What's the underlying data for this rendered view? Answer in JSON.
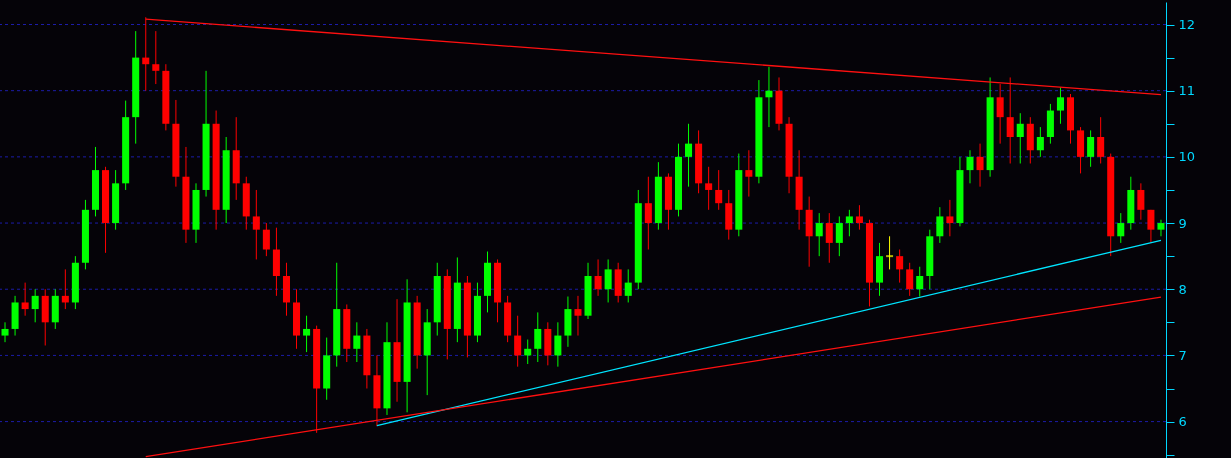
{
  "chart_data": {
    "type": "candlestick",
    "categories": [
      null,
      null,
      null,
      null,
      null,
      null,
      null,
      null,
      null,
      null,
      null,
      null,
      null,
      null,
      null,
      null,
      null,
      null,
      null,
      null,
      null,
      null,
      null,
      null,
      null,
      null,
      null,
      null,
      null,
      null,
      null,
      null,
      null,
      null,
      null,
      null,
      null,
      null,
      null,
      null,
      null,
      null,
      null,
      null,
      null,
      null,
      null,
      null,
      null,
      null,
      null,
      null,
      null,
      null,
      null,
      null,
      null,
      null,
      null,
      null,
      null,
      null,
      null,
      null,
      null,
      null,
      null,
      null,
      null,
      null,
      null,
      null,
      null,
      null,
      null,
      null,
      null,
      null,
      null,
      null,
      null,
      null,
      null,
      null,
      null,
      null,
      null,
      null,
      null,
      null,
      null,
      null,
      null,
      null,
      null,
      null,
      null,
      null,
      null,
      null,
      null,
      null,
      null,
      null,
      null,
      null,
      null,
      null,
      null,
      null,
      null,
      null,
      null,
      null,
      null,
      null
    ],
    "ohlc": [
      [
        7.3,
        7.5,
        7.2,
        7.4
      ],
      [
        7.4,
        7.9,
        7.3,
        7.8
      ],
      [
        7.8,
        8.1,
        7.6,
        7.7
      ],
      [
        7.7,
        8.0,
        7.5,
        7.9
      ],
      [
        7.9,
        8.0,
        7.15,
        7.5
      ],
      [
        7.5,
        8.0,
        7.4,
        7.9
      ],
      [
        7.9,
        8.3,
        7.7,
        7.8
      ],
      [
        7.8,
        8.5,
        7.7,
        8.4
      ],
      [
        8.4,
        9.35,
        8.3,
        9.2
      ],
      [
        9.2,
        10.15,
        9.1,
        9.8
      ],
      [
        9.8,
        9.85,
        8.55,
        9.0
      ],
      [
        9.0,
        9.8,
        8.9,
        9.6
      ],
      [
        9.6,
        10.85,
        9.5,
        10.6
      ],
      [
        10.6,
        11.9,
        10.2,
        11.5
      ],
      [
        11.5,
        12.11,
        11.0,
        11.4
      ],
      [
        11.4,
        11.9,
        11.1,
        11.3
      ],
      [
        11.3,
        11.4,
        10.4,
        10.5
      ],
      [
        10.5,
        10.86,
        9.55,
        9.7
      ],
      [
        9.7,
        10.15,
        8.7,
        8.9
      ],
      [
        8.9,
        9.6,
        8.7,
        9.5
      ],
      [
        9.5,
        11.3,
        9.4,
        10.5
      ],
      [
        10.5,
        10.7,
        8.9,
        9.2
      ],
      [
        9.2,
        10.3,
        9.0,
        10.1
      ],
      [
        10.1,
        10.6,
        9.35,
        9.6
      ],
      [
        9.6,
        9.7,
        8.9,
        9.1
      ],
      [
        9.1,
        9.5,
        8.45,
        8.9
      ],
      [
        8.9,
        9.0,
        8.5,
        8.6
      ],
      [
        8.6,
        8.93,
        7.9,
        8.2
      ],
      [
        8.2,
        8.4,
        7.6,
        7.8
      ],
      [
        7.8,
        8.0,
        7.1,
        7.3
      ],
      [
        7.3,
        7.6,
        7.05,
        7.4
      ],
      [
        7.4,
        7.45,
        5.83,
        6.5
      ],
      [
        6.5,
        7.27,
        6.33,
        7.0
      ],
      [
        7.0,
        8.4,
        6.83,
        7.7
      ],
      [
        7.7,
        7.77,
        6.9,
        7.1
      ],
      [
        7.1,
        7.5,
        6.9,
        7.3
      ],
      [
        7.3,
        7.4,
        6.5,
        6.7
      ],
      [
        6.7,
        7.0,
        5.93,
        6.2
      ],
      [
        6.2,
        7.5,
        6.1,
        7.2
      ],
      [
        7.2,
        7.85,
        6.3,
        6.6
      ],
      [
        6.6,
        8.15,
        6.14,
        7.8
      ],
      [
        7.8,
        7.9,
        6.8,
        7.0
      ],
      [
        7.0,
        7.7,
        6.4,
        7.5
      ],
      [
        7.5,
        8.4,
        7.3,
        8.2
      ],
      [
        8.2,
        8.3,
        6.94,
        7.4
      ],
      [
        7.4,
        8.48,
        7.2,
        8.1
      ],
      [
        8.1,
        8.2,
        6.97,
        7.3
      ],
      [
        7.3,
        8.1,
        7.2,
        7.9
      ],
      [
        7.9,
        8.57,
        7.65,
        8.4
      ],
      [
        8.4,
        8.45,
        7.5,
        7.8
      ],
      [
        7.8,
        7.9,
        7.2,
        7.3
      ],
      [
        7.3,
        7.6,
        6.83,
        7.0
      ],
      [
        7.0,
        7.24,
        6.87,
        7.1
      ],
      [
        7.1,
        7.65,
        6.9,
        7.4
      ],
      [
        7.4,
        7.5,
        6.85,
        7.0
      ],
      [
        7.0,
        7.5,
        6.83,
        7.3
      ],
      [
        7.3,
        7.89,
        7.13,
        7.7
      ],
      [
        7.7,
        7.9,
        7.3,
        7.6
      ],
      [
        7.6,
        8.4,
        7.55,
        8.2
      ],
      [
        8.2,
        8.45,
        7.9,
        8.0
      ],
      [
        8.0,
        8.45,
        7.8,
        8.3
      ],
      [
        8.3,
        8.4,
        7.8,
        7.9
      ],
      [
        7.9,
        8.3,
        7.8,
        8.1
      ],
      [
        8.1,
        9.5,
        8.0,
        9.3
      ],
      [
        9.3,
        9.7,
        8.6,
        9.0
      ],
      [
        9.0,
        9.92,
        8.9,
        9.7
      ],
      [
        9.7,
        9.75,
        8.9,
        9.2
      ],
      [
        9.2,
        10.2,
        9.1,
        10.0
      ],
      [
        10.0,
        10.5,
        9.55,
        10.2
      ],
      [
        10.2,
        10.4,
        9.45,
        9.6
      ],
      [
        9.6,
        9.85,
        9.2,
        9.5
      ],
      [
        9.5,
        9.8,
        9.2,
        9.3
      ],
      [
        9.3,
        9.5,
        8.75,
        8.9
      ],
      [
        8.9,
        10.05,
        8.8,
        9.8
      ],
      [
        9.8,
        10.1,
        9.4,
        9.7
      ],
      [
        9.7,
        11.16,
        9.6,
        10.9
      ],
      [
        10.9,
        11.36,
        10.45,
        11.0
      ],
      [
        11.0,
        11.2,
        10.4,
        10.5
      ],
      [
        10.5,
        10.6,
        9.45,
        9.7
      ],
      [
        9.7,
        10.1,
        8.9,
        9.2
      ],
      [
        9.2,
        9.4,
        8.34,
        8.8
      ],
      [
        8.8,
        9.15,
        8.5,
        9.0
      ],
      [
        9.0,
        9.15,
        8.4,
        8.7
      ],
      [
        8.7,
        9.1,
        8.5,
        9.0
      ],
      [
        9.0,
        9.2,
        8.8,
        9.1
      ],
      [
        9.1,
        9.27,
        8.9,
        9.0
      ],
      [
        9.0,
        9.05,
        7.74,
        8.1
      ],
      [
        8.1,
        8.7,
        7.9,
        8.5
      ],
      [
        8.5,
        8.8,
        8.3,
        8.5
      ],
      [
        8.5,
        8.6,
        8.1,
        8.3
      ],
      [
        8.3,
        8.4,
        7.9,
        8.0
      ],
      [
        8.0,
        8.34,
        7.89,
        8.2
      ],
      [
        8.2,
        8.9,
        8.0,
        8.8
      ],
      [
        8.8,
        9.24,
        8.7,
        9.1
      ],
      [
        9.1,
        9.35,
        8.8,
        9.0
      ],
      [
        9.0,
        10.0,
        8.95,
        9.8
      ],
      [
        9.8,
        10.1,
        9.6,
        10.0
      ],
      [
        10.0,
        10.2,
        9.55,
        9.8
      ],
      [
        9.8,
        11.2,
        9.7,
        10.9
      ],
      [
        10.9,
        11.1,
        10.2,
        10.6
      ],
      [
        10.6,
        11.2,
        9.9,
        10.3
      ],
      [
        10.3,
        10.66,
        9.9,
        10.5
      ],
      [
        10.5,
        10.6,
        9.9,
        10.1
      ],
      [
        10.1,
        10.45,
        10.0,
        10.3
      ],
      [
        10.3,
        10.8,
        10.2,
        10.7
      ],
      [
        10.7,
        11.05,
        10.5,
        10.9
      ],
      [
        10.9,
        10.95,
        10.2,
        10.4
      ],
      [
        10.4,
        10.45,
        9.75,
        10.0
      ],
      [
        10.0,
        10.4,
        9.85,
        10.3
      ],
      [
        10.3,
        10.6,
        9.9,
        10.0
      ],
      [
        10.0,
        10.05,
        8.5,
        8.8
      ],
      [
        8.8,
        9.15,
        8.7,
        9.0
      ],
      [
        9.0,
        9.7,
        8.9,
        9.5
      ],
      [
        9.5,
        9.6,
        9.05,
        9.2
      ],
      [
        9.2,
        9.2,
        8.7,
        8.9
      ],
      [
        8.9,
        9.05,
        8.8,
        9.0
      ]
    ],
    "colors": [
      "#00ff00",
      "#00ff00",
      "#ff0000",
      "#00ff00",
      "#ff0000",
      "#00ff00",
      "#ff0000",
      "#00ff00",
      "#00ff00",
      "#00ff00",
      "#ff0000",
      "#00ff00",
      "#00ff00",
      "#00ff00",
      "#ff0000",
      "#ff0000",
      "#ff0000",
      "#ff0000",
      "#ff0000",
      "#00ff00",
      "#00ff00",
      "#ff0000",
      "#00ff00",
      "#ff0000",
      "#ff0000",
      "#ff0000",
      "#ff0000",
      "#ff0000",
      "#ff0000",
      "#ff0000",
      "#00ff00",
      "#ff0000",
      "#00ff00",
      "#00ff00",
      "#ff0000",
      "#00ff00",
      "#ff0000",
      "#ff0000",
      "#00ff00",
      "#ff0000",
      "#00ff00",
      "#ff0000",
      "#00ff00",
      "#00ff00",
      "#ff0000",
      "#00ff00",
      "#ff0000",
      "#00ff00",
      "#00ff00",
      "#ff0000",
      "#ff0000",
      "#ff0000",
      "#00ff00",
      "#00ff00",
      "#ff0000",
      "#00ff00",
      "#00ff00",
      "#ff0000",
      "#00ff00",
      "#ff0000",
      "#00ff00",
      "#ff0000",
      "#00ff00",
      "#00ff00",
      "#ff0000",
      "#00ff00",
      "#ff0000",
      "#00ff00",
      "#00ff00",
      "#ff0000",
      "#ff0000",
      "#ff0000",
      "#ff0000",
      "#00ff00",
      "#ff0000",
      "#00ff00",
      "#00ff00",
      "#ff0000",
      "#ff0000",
      "#ff0000",
      "#ff0000",
      "#00ff00",
      "#ff0000",
      "#00ff00",
      "#00ff00",
      "#ff0000",
      "#ff0000",
      "#00ff00",
      "#ffff00",
      "#ff0000",
      "#ff0000",
      "#00ff00",
      "#00ff00",
      "#00ff00",
      "#ff0000",
      "#00ff00",
      "#00ff00",
      "#ff0000",
      "#00ff00",
      "#ff0000",
      "#ff0000",
      "#00ff00",
      "#ff0000",
      "#00ff00",
      "#00ff00",
      "#00ff00",
      "#ff0000",
      "#ff0000",
      "#00ff00",
      "#ff0000",
      "#ff0000",
      "#00ff00",
      "#00ff00",
      "#ff0000",
      "#ff0000",
      "#00ff00"
    ],
    "series": [
      {
        "type": "line",
        "color": "#ff1010",
        "values": [
          null,
          null,
          null,
          null,
          null,
          null,
          null,
          null,
          null,
          null,
          null,
          null,
          null,
          null,
          12.08,
          null,
          null,
          null,
          null,
          null,
          null,
          null,
          null,
          null,
          null,
          null,
          null,
          null,
          null,
          null,
          null,
          null,
          null,
          null,
          null,
          null,
          null,
          null,
          null,
          null,
          null,
          null,
          null,
          null,
          null,
          null,
          null,
          null,
          null,
          null,
          null,
          null,
          null,
          null,
          null,
          null,
          null,
          null,
          null,
          null,
          null,
          null,
          null,
          null,
          null,
          null,
          null,
          null,
          null,
          null,
          null,
          null,
          null,
          null,
          null,
          null,
          null,
          null,
          null,
          null,
          null,
          null,
          null,
          null,
          null,
          null,
          null,
          null,
          null,
          null,
          null,
          null,
          null,
          null,
          null,
          null,
          null,
          null,
          null,
          null,
          null,
          null,
          null,
          null,
          null,
          null,
          null,
          null,
          null,
          null,
          null,
          null,
          null,
          null,
          null,
          10.94
        ]
      },
      {
        "type": "line",
        "color": "#00e5ff",
        "values": [
          null,
          null,
          null,
          null,
          null,
          null,
          null,
          null,
          null,
          null,
          null,
          null,
          null,
          null,
          null,
          null,
          null,
          null,
          null,
          null,
          null,
          null,
          null,
          null,
          null,
          null,
          null,
          null,
          null,
          null,
          null,
          null,
          null,
          null,
          null,
          null,
          null,
          5.94,
          null,
          null,
          null,
          null,
          null,
          null,
          null,
          null,
          null,
          null,
          null,
          null,
          null,
          null,
          null,
          null,
          null,
          null,
          null,
          null,
          null,
          null,
          null,
          null,
          null,
          null,
          null,
          null,
          null,
          null,
          null,
          null,
          null,
          null,
          null,
          null,
          null,
          null,
          null,
          null,
          null,
          null,
          null,
          null,
          null,
          null,
          null,
          null,
          null,
          null,
          null,
          null,
          null,
          null,
          null,
          null,
          null,
          null,
          null,
          null,
          null,
          null,
          null,
          null,
          null,
          null,
          null,
          null,
          null,
          null,
          null,
          null,
          null,
          null,
          null,
          null,
          null,
          8.74
        ]
      },
      {
        "type": "line",
        "color": "#ff1010",
        "values": [
          null,
          null,
          null,
          null,
          null,
          null,
          null,
          null,
          null,
          null,
          null,
          null,
          null,
          null,
          5.47,
          null,
          null,
          null,
          null,
          null,
          null,
          null,
          null,
          null,
          null,
          null,
          null,
          null,
          null,
          null,
          null,
          null,
          null,
          null,
          null,
          null,
          null,
          null,
          null,
          null,
          null,
          null,
          null,
          null,
          null,
          null,
          null,
          null,
          null,
          null,
          null,
          null,
          null,
          null,
          null,
          null,
          null,
          null,
          null,
          null,
          null,
          null,
          null,
          null,
          null,
          null,
          null,
          null,
          null,
          null,
          null,
          null,
          null,
          null,
          null,
          null,
          null,
          null,
          null,
          null,
          null,
          null,
          null,
          null,
          null,
          null,
          null,
          null,
          null,
          null,
          null,
          null,
          null,
          null,
          null,
          null,
          null,
          null,
          null,
          null,
          null,
          null,
          null,
          null,
          null,
          null,
          null,
          null,
          null,
          null,
          null,
          null,
          null,
          null,
          null,
          7.88
        ]
      }
    ],
    "ylim": [
      5.45,
      12.34
    ],
    "yticks": [
      {
        "value": 5.5,
        "label": null
      },
      6,
      {
        "value": 6.5,
        "label": null
      },
      7,
      {
        "value": 7.5,
        "label": null
      },
      8,
      {
        "value": 8.5,
        "label": null
      },
      9,
      {
        "value": 9.5,
        "label": null
      },
      10,
      {
        "value": 10.5,
        "label": null
      },
      11,
      {
        "value": 11.5,
        "label": null
      },
      12
    ],
    "grid": "y",
    "tick_labels": "y"
  }
}
